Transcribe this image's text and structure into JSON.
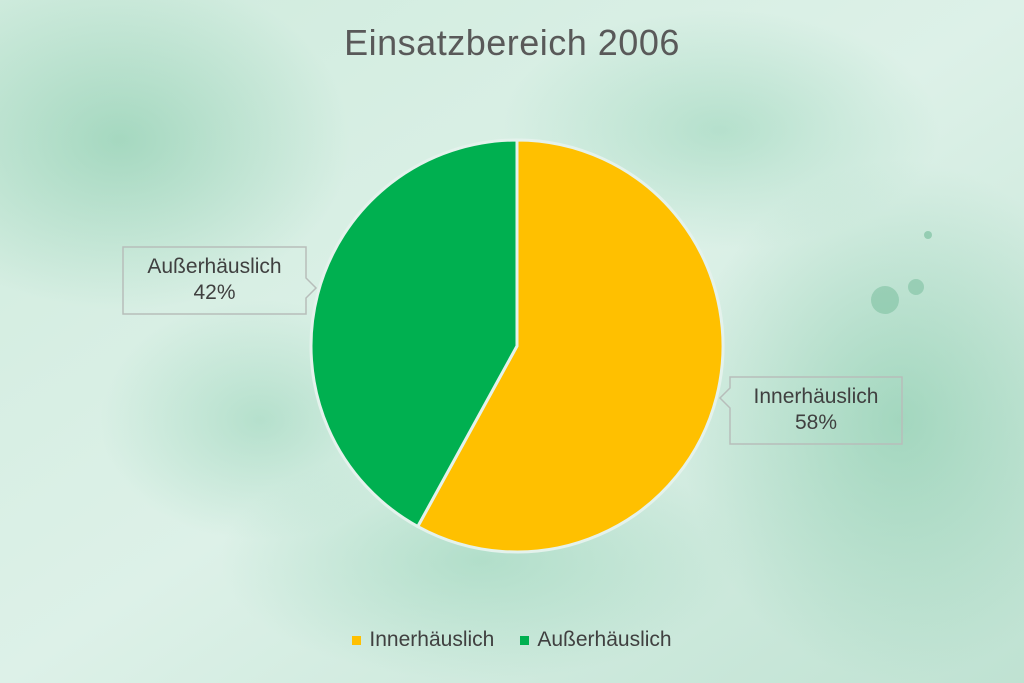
{
  "chart_data": {
    "type": "pie",
    "title": "Einsatzbereich 2006",
    "series": [
      {
        "name": "Innerhäuslich",
        "value": 58,
        "label": "58%",
        "color": "#FFC000"
      },
      {
        "name": "Außerhäuslich",
        "value": 42,
        "label": "42%",
        "color": "#00B050"
      }
    ],
    "legend_position": "bottom"
  },
  "colors": {
    "background": "#D6EDE3",
    "title_text": "#595959",
    "label_text": "#404040"
  }
}
